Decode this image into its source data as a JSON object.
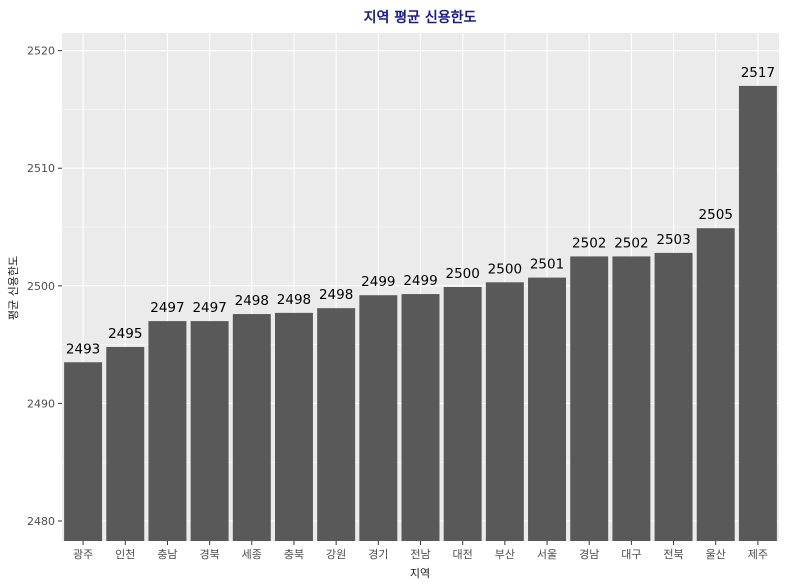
{
  "chart_data": {
    "type": "bar",
    "title": "지역 평균 신용한도",
    "xlabel": "지역",
    "ylabel": "평균 신용한도",
    "categories": [
      "광주",
      "인천",
      "충남",
      "경북",
      "세종",
      "충북",
      "강원",
      "경기",
      "전남",
      "대전",
      "부산",
      "서울",
      "경남",
      "대구",
      "전북",
      "울산",
      "제주"
    ],
    "values": [
      2493.5,
      2494.8,
      2497.0,
      2497.0,
      2497.6,
      2497.7,
      2498.1,
      2499.2,
      2499.3,
      2499.9,
      2500.3,
      2500.7,
      2502.5,
      2502.5,
      2502.8,
      2504.9,
      2517.0
    ],
    "labels": [
      "2493",
      "2495",
      "2497",
      "2497",
      "2498",
      "2498",
      "2498",
      "2499",
      "2499",
      "2500",
      "2500",
      "2501",
      "2502",
      "2502",
      "2503",
      "2505",
      "2517"
    ],
    "ylim": [
      2478.3,
      2521.5
    ],
    "yticks": [
      2480,
      2490,
      2500,
      2510,
      2520
    ],
    "grid": true,
    "colors": {
      "bar": "#595959",
      "panel": "#ebebeb",
      "grid": "#ffffff",
      "title": "#1a1a8c"
    }
  }
}
